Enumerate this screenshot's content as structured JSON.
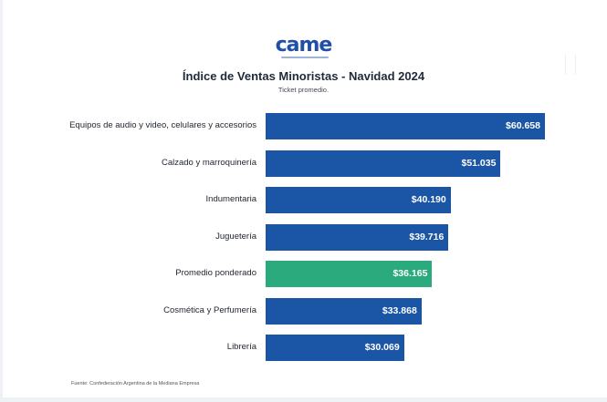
{
  "logo": {
    "text": "came",
    "tagline": "Confederación Argentina de la Mediana Empresa"
  },
  "chart_data": {
    "type": "bar",
    "orientation": "horizontal",
    "title": "Índice de Ventas Minoristas - Navidad 2024",
    "subtitle": "Ticket promedio.",
    "categories": [
      "Equipos de audio y video, celulares y accesorios",
      "Calzado y marroquinería",
      "Indumentaria",
      "Juguetería",
      "Promedio ponderado",
      "Cosmética y Perfumería",
      "Librería"
    ],
    "values": [
      60658,
      51035,
      40190,
      39716,
      36165,
      33868,
      30069
    ],
    "value_labels": [
      "$60.658",
      "$51.035",
      "$40.190",
      "$39.716",
      "$36.165",
      "$33.868",
      "$30.069"
    ],
    "highlight_index": 4,
    "colors": {
      "default": "#1a55a6",
      "highlight": "#2bab7d"
    },
    "xlim": [
      0,
      60658
    ],
    "xlabel": "",
    "ylabel": "",
    "grid": false
  },
  "source": "Fuente: Confederación Argentina de la Mediana Empresa"
}
